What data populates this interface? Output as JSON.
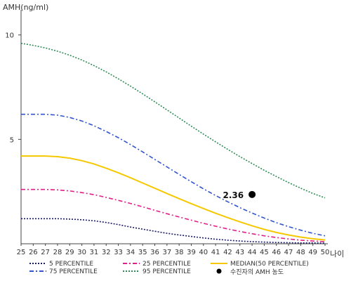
{
  "chart_data": {
    "type": "line",
    "ylabel": "AMH(ng/ml)",
    "xlabel": "나이",
    "ylim": [
      0,
      11
    ],
    "xlim": [
      25,
      50
    ],
    "yticks": [
      5,
      10
    ],
    "x": [
      25,
      26,
      27,
      28,
      29,
      30,
      31,
      32,
      33,
      34,
      35,
      36,
      37,
      38,
      39,
      40,
      41,
      42,
      43,
      44,
      45,
      46,
      47,
      48,
      49,
      50
    ],
    "series": [
      {
        "name": "5 PERCENTILE",
        "color": "#1a1a66",
        "dash": "2,2",
        "values": [
          1.2,
          1.2,
          1.2,
          1.2,
          1.18,
          1.15,
          1.1,
          1.02,
          0.92,
          0.8,
          0.7,
          0.6,
          0.5,
          0.42,
          0.35,
          0.28,
          0.22,
          0.17,
          0.13,
          0.1,
          0.08,
          0.06,
          0.05,
          0.04,
          0.04,
          0.03
        ]
      },
      {
        "name": "25 PERCENTILE",
        "color": "#e0208a",
        "dash": "6,3,2,3",
        "values": [
          2.6,
          2.6,
          2.6,
          2.58,
          2.53,
          2.45,
          2.35,
          2.22,
          2.08,
          1.93,
          1.77,
          1.6,
          1.44,
          1.28,
          1.13,
          0.98,
          0.84,
          0.71,
          0.59,
          0.48,
          0.38,
          0.3,
          0.23,
          0.17,
          0.13,
          0.1
        ]
      },
      {
        "name": "MEDIAN(50 PERCENTILE)",
        "color": "#f5c800",
        "dash": "",
        "values": [
          4.2,
          4.2,
          4.2,
          4.17,
          4.1,
          3.98,
          3.82,
          3.62,
          3.4,
          3.16,
          2.91,
          2.66,
          2.41,
          2.16,
          1.92,
          1.69,
          1.46,
          1.25,
          1.05,
          0.86,
          0.69,
          0.54,
          0.42,
          0.32,
          0.24,
          0.18
        ]
      },
      {
        "name": "75 PERCENTILE",
        "color": "#3355cc",
        "dash": "6,3,2,3",
        "values": [
          6.2,
          6.2,
          6.2,
          6.16,
          6.05,
          5.88,
          5.65,
          5.38,
          5.08,
          4.75,
          4.4,
          4.04,
          3.68,
          3.32,
          2.97,
          2.63,
          2.31,
          2.01,
          1.73,
          1.47,
          1.23,
          1.01,
          0.82,
          0.65,
          0.5,
          0.38
        ]
      },
      {
        "name": "95 PERCENTILE",
        "color": "#2e8b57",
        "dash": "2,2",
        "values": [
          9.6,
          9.5,
          9.38,
          9.22,
          9.03,
          8.8,
          8.53,
          8.23,
          7.9,
          7.55,
          7.18,
          6.8,
          6.41,
          6.02,
          5.63,
          5.25,
          4.88,
          4.52,
          4.17,
          3.84,
          3.52,
          3.22,
          2.93,
          2.66,
          2.41,
          2.2
        ]
      }
    ],
    "annotation": {
      "label": "2.36",
      "x": 44,
      "y": 2.36,
      "legend_label": "수진자의 AMH 농도",
      "color": "#000000"
    },
    "legend_position": "bottom",
    "grid": false
  }
}
